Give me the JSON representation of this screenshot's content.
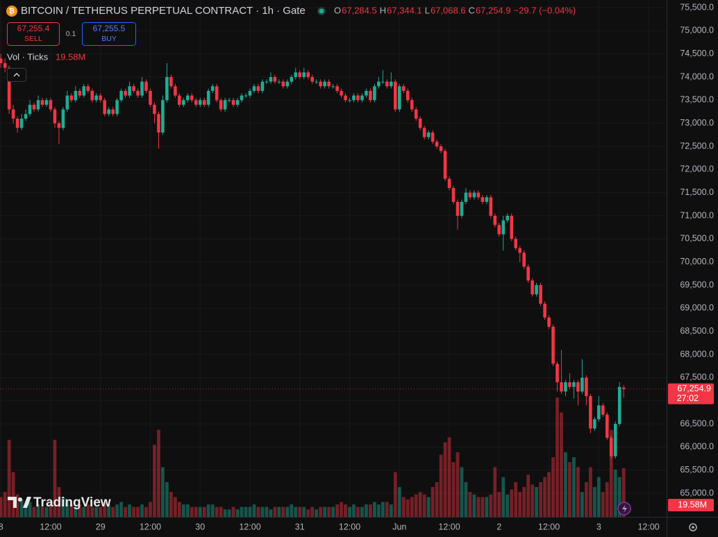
{
  "chart_data": {
    "type": "candlestick",
    "title": "BITCOIN / TETHERUS PERPETUAL CONTRACT · 1h · Gate",
    "legend": [
      {
        "key": "O",
        "value": "67,284.5"
      },
      {
        "key": "H",
        "value": "67,344.1"
      },
      {
        "key": "L",
        "value": "67,068.6"
      },
      {
        "key": "C",
        "value": "67,254.9"
      }
    ],
    "change": "−29.7 (−0.04%)",
    "sell": {
      "price": "67,255.4",
      "label": "SELL"
    },
    "spread": "0.1",
    "buy": {
      "price": "67,255.5",
      "label": "BUY"
    },
    "volume_title": "Vol · Ticks",
    "volume_label": "19.58M",
    "last_price_label": "67,254.9",
    "countdown": "27:02",
    "watermark": "TradingView",
    "up_color": "#22ab94",
    "down_color": "#f23645",
    "grid": true,
    "ylim": [
      65000,
      75500
    ],
    "yticks": [
      {
        "value": 65000,
        "label": "65,000.0"
      },
      {
        "value": 65500,
        "label": "65,500.0"
      },
      {
        "value": 66000,
        "label": "66,000.0"
      },
      {
        "value": 66500,
        "label": "66,500.0"
      },
      {
        "value": 67000,
        "label": "67,000.0"
      },
      {
        "value": 67500,
        "label": "67,500.0"
      },
      {
        "value": 68000,
        "label": "68,000.0"
      },
      {
        "value": 68500,
        "label": "68,500.0"
      },
      {
        "value": 69000,
        "label": "69,000.0"
      },
      {
        "value": 69500,
        "label": "69,500.0"
      },
      {
        "value": 70000,
        "label": "70,000.0"
      },
      {
        "value": 70500,
        "label": "70,500.0"
      },
      {
        "value": 71000,
        "label": "71,000.0"
      },
      {
        "value": 71500,
        "label": "71,500.0"
      },
      {
        "value": 72000,
        "label": "72,000.0"
      },
      {
        "value": 72500,
        "label": "72,500.0"
      },
      {
        "value": 73000,
        "label": "73,000.0"
      },
      {
        "value": 73500,
        "label": "73,500.0"
      },
      {
        "value": 74000,
        "label": "74,000.0"
      },
      {
        "value": 74500,
        "label": "74,500.0"
      },
      {
        "value": 75000,
        "label": "75,000.0"
      },
      {
        "value": 75500,
        "label": "75,500.0"
      }
    ],
    "xticks": [
      {
        "value": 0,
        "label": "8"
      },
      {
        "value": 12,
        "label": "12:00"
      },
      {
        "value": 24,
        "label": "29"
      },
      {
        "value": 36,
        "label": "12:00"
      },
      {
        "value": 48,
        "label": "30"
      },
      {
        "value": 60,
        "label": "12:00"
      },
      {
        "value": 72,
        "label": "31"
      },
      {
        "value": 84,
        "label": "12:00"
      },
      {
        "value": 96,
        "label": "Jun"
      },
      {
        "value": 108,
        "label": "12:00"
      },
      {
        "value": 120,
        "label": "2"
      },
      {
        "value": 132,
        "label": "12:00"
      },
      {
        "value": 144,
        "label": "3"
      },
      {
        "value": 156,
        "label": "12:00"
      }
    ],
    "series": {
      "open": [
        74400,
        74300,
        74200,
        73300,
        73100,
        72900,
        73100,
        73200,
        73400,
        73300,
        73500,
        73400,
        73500,
        73300,
        73000,
        72900,
        73300,
        73600,
        73500,
        73700,
        73600,
        73800,
        73700,
        73500,
        73600,
        73500,
        73200,
        73300,
        73200,
        73500,
        73700,
        73600,
        73800,
        73700,
        73600,
        73900,
        73700,
        73400,
        73200,
        72800,
        73500,
        74000,
        73800,
        73600,
        73400,
        73500,
        73600,
        73500,
        73400,
        73500,
        73400,
        73700,
        73800,
        73500,
        73300,
        73500,
        73500,
        73400,
        73500,
        73600,
        73600,
        73700,
        73800,
        73700,
        73900,
        73900,
        74000,
        73900,
        73900,
        73800,
        73900,
        74000,
        74100,
        74000,
        74100,
        74000,
        73900,
        73900,
        73800,
        73900,
        73800,
        73800,
        73700,
        73600,
        73500,
        73500,
        73600,
        73500,
        73600,
        73700,
        73500,
        73800,
        73900,
        73900,
        73800,
        73900,
        73300,
        73800,
        73700,
        73500,
        73300,
        73100,
        72900,
        72700,
        72800,
        72600,
        72500,
        72400,
        71800,
        71600,
        71300,
        71000,
        71300,
        71500,
        71400,
        71500,
        71400,
        71300,
        71400,
        71000,
        70800,
        70600,
        70900,
        71000,
        70500,
        70300,
        70200,
        69900,
        69600,
        69300,
        69500,
        69100,
        68800,
        68600,
        67800,
        67400,
        67200,
        67400,
        67300,
        67400,
        67200,
        67500,
        67100,
        66400,
        66600,
        66900,
        66700,
        66200,
        65800,
        66500,
        67284.5
      ],
      "high": [
        74500,
        74400,
        74250,
        73400,
        73150,
        73200,
        73300,
        73500,
        73450,
        73600,
        73550,
        73550,
        73550,
        73350,
        73050,
        73350,
        73700,
        73650,
        73800,
        73750,
        73850,
        73850,
        73750,
        73650,
        73650,
        73550,
        73350,
        73350,
        73550,
        73750,
        73750,
        73900,
        73850,
        73750,
        74000,
        73950,
        73750,
        73450,
        73250,
        73600,
        74300,
        74050,
        73850,
        73650,
        73550,
        73650,
        73650,
        73550,
        73550,
        73550,
        73750,
        73850,
        73850,
        73550,
        73550,
        73550,
        73550,
        73550,
        73650,
        73650,
        73750,
        73850,
        73850,
        73950,
        73950,
        74100,
        74050,
        73950,
        73950,
        73950,
        74050,
        74200,
        74150,
        74200,
        74150,
        74050,
        73950,
        73950,
        73950,
        73950,
        73850,
        73850,
        73750,
        73650,
        73550,
        73650,
        73650,
        73650,
        73750,
        73750,
        73850,
        74000,
        74150,
        73950,
        74100,
        73950,
        73850,
        73850,
        73750,
        73550,
        73350,
        73150,
        72950,
        72850,
        72850,
        72650,
        72550,
        72450,
        71850,
        71650,
        71350,
        71350,
        71600,
        71550,
        71550,
        71550,
        71450,
        71450,
        71450,
        71050,
        70850,
        71000,
        71050,
        71050,
        70550,
        70350,
        70250,
        69950,
        69650,
        69550,
        69550,
        69150,
        68850,
        68650,
        67850,
        68100,
        67450,
        67600,
        67450,
        67450,
        67900,
        67550,
        67150,
        66650,
        67100,
        66950,
        66750,
        66250,
        66550,
        67400,
        67344.1
      ],
      "low": [
        74200,
        74100,
        73200,
        73000,
        72800,
        72850,
        73050,
        73150,
        73250,
        73250,
        73350,
        73350,
        73250,
        72900,
        72550,
        72850,
        73250,
        73450,
        73450,
        73550,
        73550,
        73650,
        73450,
        73450,
        73450,
        73150,
        73150,
        73150,
        73150,
        73450,
        73550,
        73550,
        73650,
        73550,
        73550,
        73650,
        73350,
        73000,
        72450,
        72750,
        73450,
        73750,
        73550,
        73350,
        73350,
        73450,
        73450,
        73350,
        73350,
        73350,
        73350,
        73650,
        73450,
        73250,
        73250,
        73450,
        73350,
        73350,
        73450,
        73550,
        73550,
        73650,
        73650,
        73650,
        73850,
        73850,
        73850,
        73850,
        73750,
        73750,
        73850,
        73950,
        73950,
        73950,
        73950,
        73850,
        73850,
        73750,
        73750,
        73750,
        73750,
        73650,
        73550,
        73450,
        73450,
        73450,
        73450,
        73450,
        73550,
        73450,
        73450,
        73750,
        73850,
        73750,
        73750,
        73250,
        73250,
        73650,
        73450,
        73250,
        73050,
        72850,
        72650,
        72650,
        72550,
        72450,
        72350,
        71750,
        71550,
        71250,
        70700,
        70950,
        71250,
        71350,
        71350,
        71350,
        71250,
        71250,
        70950,
        70750,
        70550,
        70250,
        70850,
        70450,
        70250,
        70000,
        69850,
        69550,
        69250,
        69250,
        69050,
        68750,
        68550,
        67750,
        67200,
        67150,
        67100,
        67250,
        67050,
        66900,
        67150,
        66900,
        66300,
        66350,
        66550,
        66650,
        66150,
        65750,
        65750,
        66450,
        67068.6
      ],
      "close": [
        74300,
        74200,
        73300,
        73100,
        72900,
        73100,
        73200,
        73400,
        73300,
        73500,
        73400,
        73500,
        73300,
        73000,
        72900,
        73300,
        73600,
        73500,
        73700,
        73600,
        73800,
        73700,
        73500,
        73600,
        73500,
        73200,
        73300,
        73200,
        73500,
        73700,
        73600,
        73800,
        73700,
        73600,
        73900,
        73700,
        73400,
        73200,
        72800,
        73500,
        74000,
        73800,
        73600,
        73400,
        73500,
        73600,
        73500,
        73400,
        73500,
        73400,
        73700,
        73800,
        73500,
        73300,
        73500,
        73500,
        73400,
        73500,
        73600,
        73600,
        73700,
        73800,
        73700,
        73900,
        73900,
        74000,
        73900,
        73900,
        73800,
        73900,
        74000,
        74100,
        74000,
        74100,
        74000,
        73900,
        73900,
        73800,
        73900,
        73800,
        73800,
        73700,
        73600,
        73500,
        73500,
        73600,
        73500,
        73600,
        73700,
        73500,
        73800,
        73900,
        73900,
        73800,
        73900,
        73300,
        73800,
        73700,
        73500,
        73300,
        73100,
        72900,
        72700,
        72800,
        72600,
        72500,
        72400,
        71800,
        71600,
        71300,
        71000,
        71300,
        71500,
        71400,
        71500,
        71400,
        71300,
        71400,
        71000,
        70800,
        70600,
        70900,
        71000,
        70500,
        70300,
        70200,
        69900,
        69600,
        69300,
        69500,
        69100,
        68800,
        68600,
        67800,
        67400,
        67200,
        67400,
        67300,
        67400,
        67200,
        67500,
        67100,
        66400,
        66600,
        66900,
        66700,
        66200,
        65800,
        66500,
        67300,
        67254.9
      ],
      "volume": [
        8,
        10,
        31,
        18,
        9,
        7,
        5,
        6,
        4,
        5,
        4,
        4,
        5,
        31,
        12,
        8,
        6,
        5,
        4,
        5,
        4,
        5,
        4,
        4,
        4,
        6,
        5,
        4,
        5,
        6,
        4,
        5,
        4,
        4,
        5,
        4,
        6,
        29,
        35,
        20,
        14,
        10,
        8,
        6,
        5,
        5,
        4,
        4,
        4,
        4,
        5,
        5,
        4,
        4,
        3,
        3,
        4,
        3,
        4,
        4,
        4,
        5,
        4,
        4,
        4,
        3,
        4,
        4,
        4,
        4,
        5,
        4,
        4,
        4,
        3,
        4,
        3,
        4,
        4,
        4,
        4,
        5,
        6,
        5,
        4,
        5,
        4,
        4,
        5,
        5,
        6,
        5,
        6,
        6,
        5,
        18,
        12,
        8,
        7,
        8,
        9,
        10,
        9,
        8,
        12,
        14,
        25,
        30,
        32,
        22,
        26,
        20,
        14,
        10,
        9,
        8,
        8,
        8,
        9,
        20,
        10,
        16,
        9,
        11,
        14,
        10,
        12,
        17,
        13,
        12,
        14,
        16,
        18,
        24,
        48,
        42,
        26,
        22,
        24,
        20,
        10,
        14,
        20,
        12,
        16,
        10,
        14,
        35,
        19,
        16,
        19.58
      ]
    }
  }
}
